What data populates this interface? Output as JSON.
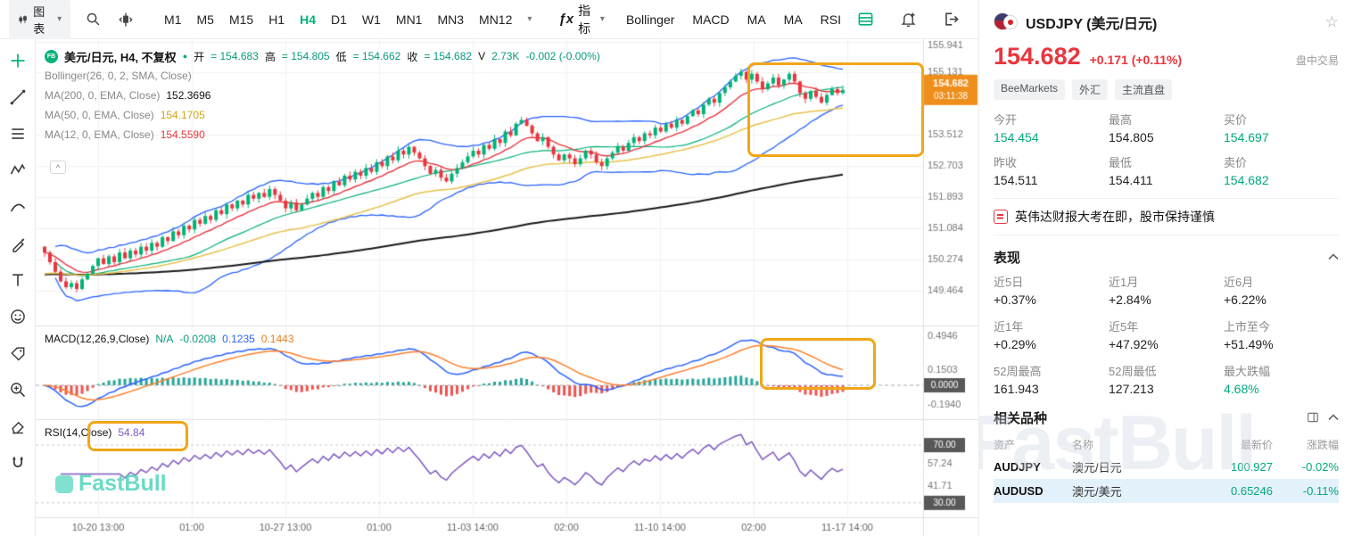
{
  "toolbar": {
    "chart_menu_label": "图表",
    "timeframes": [
      "M1",
      "M5",
      "M15",
      "H1",
      "H4",
      "D1",
      "W1",
      "MN1",
      "MN3",
      "MN12"
    ],
    "active_timeframe": "H4",
    "fx_label": "ƒx",
    "indicator_menu_label": "指标",
    "indicator_buttons": [
      "Bollinger",
      "MACD",
      "MA",
      "MA",
      "RSI"
    ]
  },
  "tools": [
    "crosshair",
    "trend-line",
    "fib-retracement",
    "elliott-waves",
    "curve",
    "brush",
    "text",
    "emoji",
    "price-tag",
    "zoom-in",
    "eraser",
    "magnet"
  ],
  "legend": {
    "symbol_badge": "FB",
    "symbol": "美元/日元, H4, 不复权",
    "ohlc": [
      {
        "k": "开",
        "v": "= 154.683"
      },
      {
        "k": "高",
        "v": "= 154.805"
      },
      {
        "k": "低",
        "v": "= 154.662"
      },
      {
        "k": "收",
        "v": "= 154.682"
      }
    ],
    "volume_k": "V",
    "volume_v": "2.73K",
    "change": "-0.002 (-0.00%)",
    "bollinger": "Bollinger(26, 0, 2, SMA, Close)",
    "ma200_k": "MA(200, 0, EMA, Close)",
    "ma200_v": "152.3696",
    "ma50_k": "MA(50, 0, EMA, Close)",
    "ma50_v": "154.1705",
    "ma12_k": "MA(12, 0, EMA, Close)",
    "ma12_v": "154.5590",
    "macd_k": "MACD(12,26,9,Close)",
    "macd_na": "N/A",
    "macd_hist": "-0.0208",
    "macd_line": "0.1235",
    "macd_signal": "0.1443",
    "rsi_k": "RSI(14,Close)",
    "rsi_v": "54.84",
    "collapse_glyph": "^"
  },
  "watermark_chart": "FastBull",
  "chart_data": {
    "type": "candlestick",
    "title": "USDJPY H4 with Bollinger(26,0,2,SMA), EMA200/EMA50/EMA12, MACD(12,26,9), RSI(14)",
    "price": {
      "ylim": [
        148.55,
        156.0
      ],
      "closes": [
        150.45,
        150.2,
        149.95,
        149.7,
        149.55,
        149.65,
        149.5,
        149.75,
        149.9,
        150.1,
        150.3,
        150.15,
        150.35,
        150.2,
        150.45,
        150.3,
        150.5,
        150.4,
        150.6,
        150.5,
        150.7,
        150.6,
        150.85,
        150.75,
        151.0,
        150.9,
        151.15,
        151.05,
        151.3,
        151.2,
        151.4,
        151.3,
        151.55,
        151.45,
        151.7,
        151.6,
        151.8,
        151.7,
        151.95,
        151.85,
        152.0,
        151.9,
        152.1,
        151.95,
        151.8,
        151.6,
        151.75,
        151.55,
        151.7,
        151.85,
        152.0,
        151.9,
        152.15,
        152.05,
        152.3,
        152.2,
        152.45,
        152.35,
        152.55,
        152.45,
        152.65,
        152.55,
        152.8,
        152.7,
        152.95,
        152.85,
        153.1,
        153.0,
        153.2,
        153.05,
        152.9,
        152.7,
        152.5,
        152.6,
        152.4,
        152.3,
        152.5,
        152.65,
        152.8,
        152.95,
        153.1,
        153.0,
        153.25,
        153.15,
        153.4,
        153.3,
        153.6,
        153.5,
        153.8,
        153.9,
        153.75,
        153.55,
        153.35,
        153.45,
        153.2,
        153.0,
        152.85,
        153.0,
        152.9,
        152.75,
        152.9,
        153.1,
        153.0,
        152.8,
        152.7,
        152.9,
        153.05,
        153.2,
        153.1,
        153.3,
        153.45,
        153.35,
        153.55,
        153.5,
        153.7,
        153.6,
        153.8,
        153.7,
        153.9,
        153.8,
        154.0,
        154.15,
        154.05,
        154.3,
        154.45,
        154.35,
        154.6,
        154.75,
        154.9,
        155.05,
        155.15,
        154.95,
        155.1,
        154.9,
        154.7,
        154.85,
        155.0,
        154.8,
        154.95,
        155.1,
        154.9,
        154.6,
        154.45,
        154.65,
        154.5,
        154.35,
        154.55,
        154.7,
        154.6,
        154.682
      ]
    },
    "bollinger": {
      "period": 26,
      "mult": 2
    },
    "emas": {
      "slow": 200,
      "mid": 50,
      "fast": 12
    },
    "macd": {
      "fast": 12,
      "slow": 26,
      "signal": 9,
      "ylim": [
        -0.34,
        0.6
      ]
    },
    "rsi": {
      "period": 14,
      "ylim": [
        20,
        88
      ],
      "bands": [
        70,
        30
      ]
    },
    "axis": {
      "price_ticks": [
        155.941,
        155.131,
        153.512,
        152.703,
        151.893,
        151.084,
        150.274,
        149.464
      ],
      "price_badge": {
        "value": "154.682",
        "time": "03:11:38"
      },
      "macd_ticks": [
        0.4946,
        0.1503,
        -0.194
      ],
      "macd_zero_badge": "0.0000",
      "rsi_ticks": [
        57.24,
        41.71
      ],
      "rsi_band_badges": [
        "70.00",
        "30.00"
      ],
      "time_labels": [
        "10-20 13:00",
        "01:00",
        "10-27 13:00",
        "01:00",
        "11-03 14:00",
        "02:00",
        "11-10 14:00",
        "02:00",
        "11-17 14:00"
      ]
    },
    "colors": {
      "up": "#00b275",
      "down": "#e9353d",
      "bollinger": "#2962ff",
      "boll_mid": "#00b275",
      "ema_slow": "#1a1a1a",
      "ema_mid": "#e8c14a",
      "ema_fast": "#e9353d",
      "macd_line": "#2962ff",
      "macd_signal": "#ff7f2a",
      "hist_pos": "#26a69a",
      "hist_neg": "#ef5350",
      "rsi": "#7e57c2",
      "badge_price": "#ef8e1b",
      "badge_gray": "#585858",
      "annotation": "#f0a618"
    }
  },
  "sidebar": {
    "symbol_title": "USDJPY (美元/日元)",
    "price": "154.682",
    "change": "+0.171 (+0.11%)",
    "session": "盘中交易",
    "chips": [
      "BeeMarkets",
      "外汇",
      "主流直盘"
    ],
    "quote": [
      {
        "label": "今开",
        "value": "154.454",
        "color": "green"
      },
      {
        "label": "最高",
        "value": "154.805",
        "color": "dark"
      },
      {
        "label": "买价",
        "value": "154.697",
        "color": "green"
      },
      {
        "label": "昨收",
        "value": "154.511",
        "color": "dark"
      },
      {
        "label": "最低",
        "value": "154.411",
        "color": "dark"
      },
      {
        "label": "卖价",
        "value": "154.682",
        "color": "green"
      }
    ],
    "news": "英伟达财报大考在即，股市保持谨慎",
    "performance": {
      "title": "表现",
      "items": [
        {
          "label": "近5日",
          "value": "+0.37%"
        },
        {
          "label": "近1月",
          "value": "+2.84%"
        },
        {
          "label": "近6月",
          "value": "+6.22%"
        },
        {
          "label": "近1年",
          "value": "+0.29%"
        },
        {
          "label": "近5年",
          "value": "+47.92%"
        },
        {
          "label": "上市至今",
          "value": "+51.49%"
        },
        {
          "label": "52周最高",
          "value": "161.943"
        },
        {
          "label": "52周最低",
          "value": "127.213"
        },
        {
          "label": "最大跌幅",
          "value": "4.68%"
        }
      ]
    },
    "related": {
      "title": "相关品种",
      "headers": [
        "资产",
        "名称",
        "最新价",
        "涨跌幅"
      ],
      "rows": [
        {
          "asset": "AUDJPY",
          "name": "澳元/日元",
          "price": "100.927",
          "change": "-0.02%"
        },
        {
          "asset": "AUDUSD",
          "name": "澳元/美元",
          "price": "0.65246",
          "change": "-0.11%"
        }
      ]
    },
    "watermark": "FastBull"
  }
}
